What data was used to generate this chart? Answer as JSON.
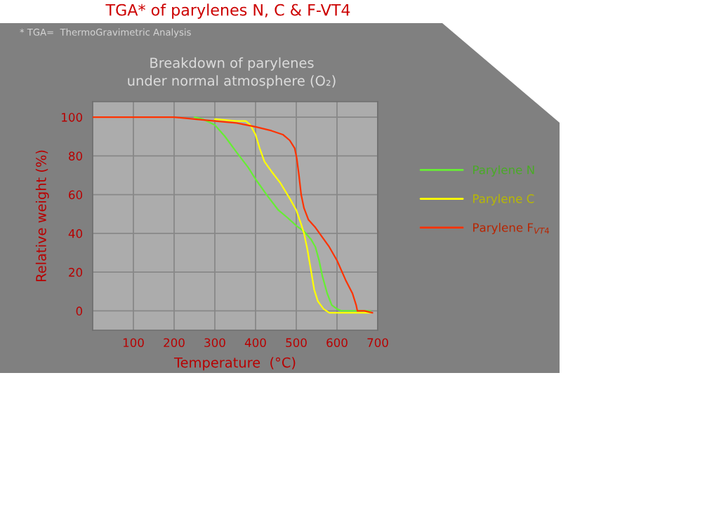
{
  "chart_data": {
    "type": "line",
    "title": "TGA* of parylenes N, C & F-VT4",
    "subtitle": "Breakdown of parylenes\nunder normal atmosphere (O₂)",
    "annotations": [
      "* TGA=  ThermoGravimetric Analysis"
    ],
    "xlabel": "Temperature  (°C)",
    "ylabel": "Relative weight (%)",
    "xlim": [
      0,
      700
    ],
    "ylim": [
      -10,
      108
    ],
    "xticks": [
      100,
      200,
      300,
      400,
      500,
      600,
      700
    ],
    "yticks": [
      0,
      20,
      40,
      60,
      80,
      100
    ],
    "grid": true,
    "legend": "right",
    "line_style": "solid",
    "series": [
      {
        "name": "Parylene N",
        "color": "#66ee33",
        "x": [
          250,
          270,
          300,
          325,
          353,
          382,
          400,
          427,
          456,
          479,
          500,
          519,
          536,
          547,
          556,
          564,
          576,
          587,
          600,
          610,
          640,
          682
        ],
        "values": [
          100,
          99,
          96,
          90,
          82,
          74,
          68,
          60,
          52,
          48,
          44,
          41,
          37,
          33,
          26,
          18,
          9,
          3,
          1,
          0,
          0,
          0
        ]
      },
      {
        "name": "Parylene C",
        "color": "#ffff00",
        "x": [
          300,
          353,
          376,
          387,
          400,
          410,
          422,
          439,
          461,
          484,
          500,
          510,
          519,
          527,
          536,
          544,
          553,
          567,
          581,
          600,
          640,
          684
        ],
        "values": [
          99,
          98,
          98,
          96,
          91,
          84,
          77,
          72,
          66,
          58,
          52,
          46,
          40,
          32,
          21,
          11,
          5,
          1,
          -1,
          -1,
          -1,
          -1
        ]
      },
      {
        "name": "Parylene F$_{VT4}$",
        "color": "#ff3300",
        "x": [
          0,
          100,
          200,
          250,
          300,
          353,
          400,
          439,
          467,
          484,
          496,
          501,
          506,
          512,
          519,
          530,
          547,
          564,
          581,
          600,
          621,
          638,
          647,
          650,
          667,
          687
        ],
        "values": [
          100,
          100,
          100,
          99,
          98,
          97,
          95,
          93,
          91,
          88,
          84,
          79,
          71,
          60,
          53,
          47,
          43,
          38,
          33,
          26,
          16,
          9,
          3,
          0,
          0,
          -1
        ]
      }
    ]
  }
}
